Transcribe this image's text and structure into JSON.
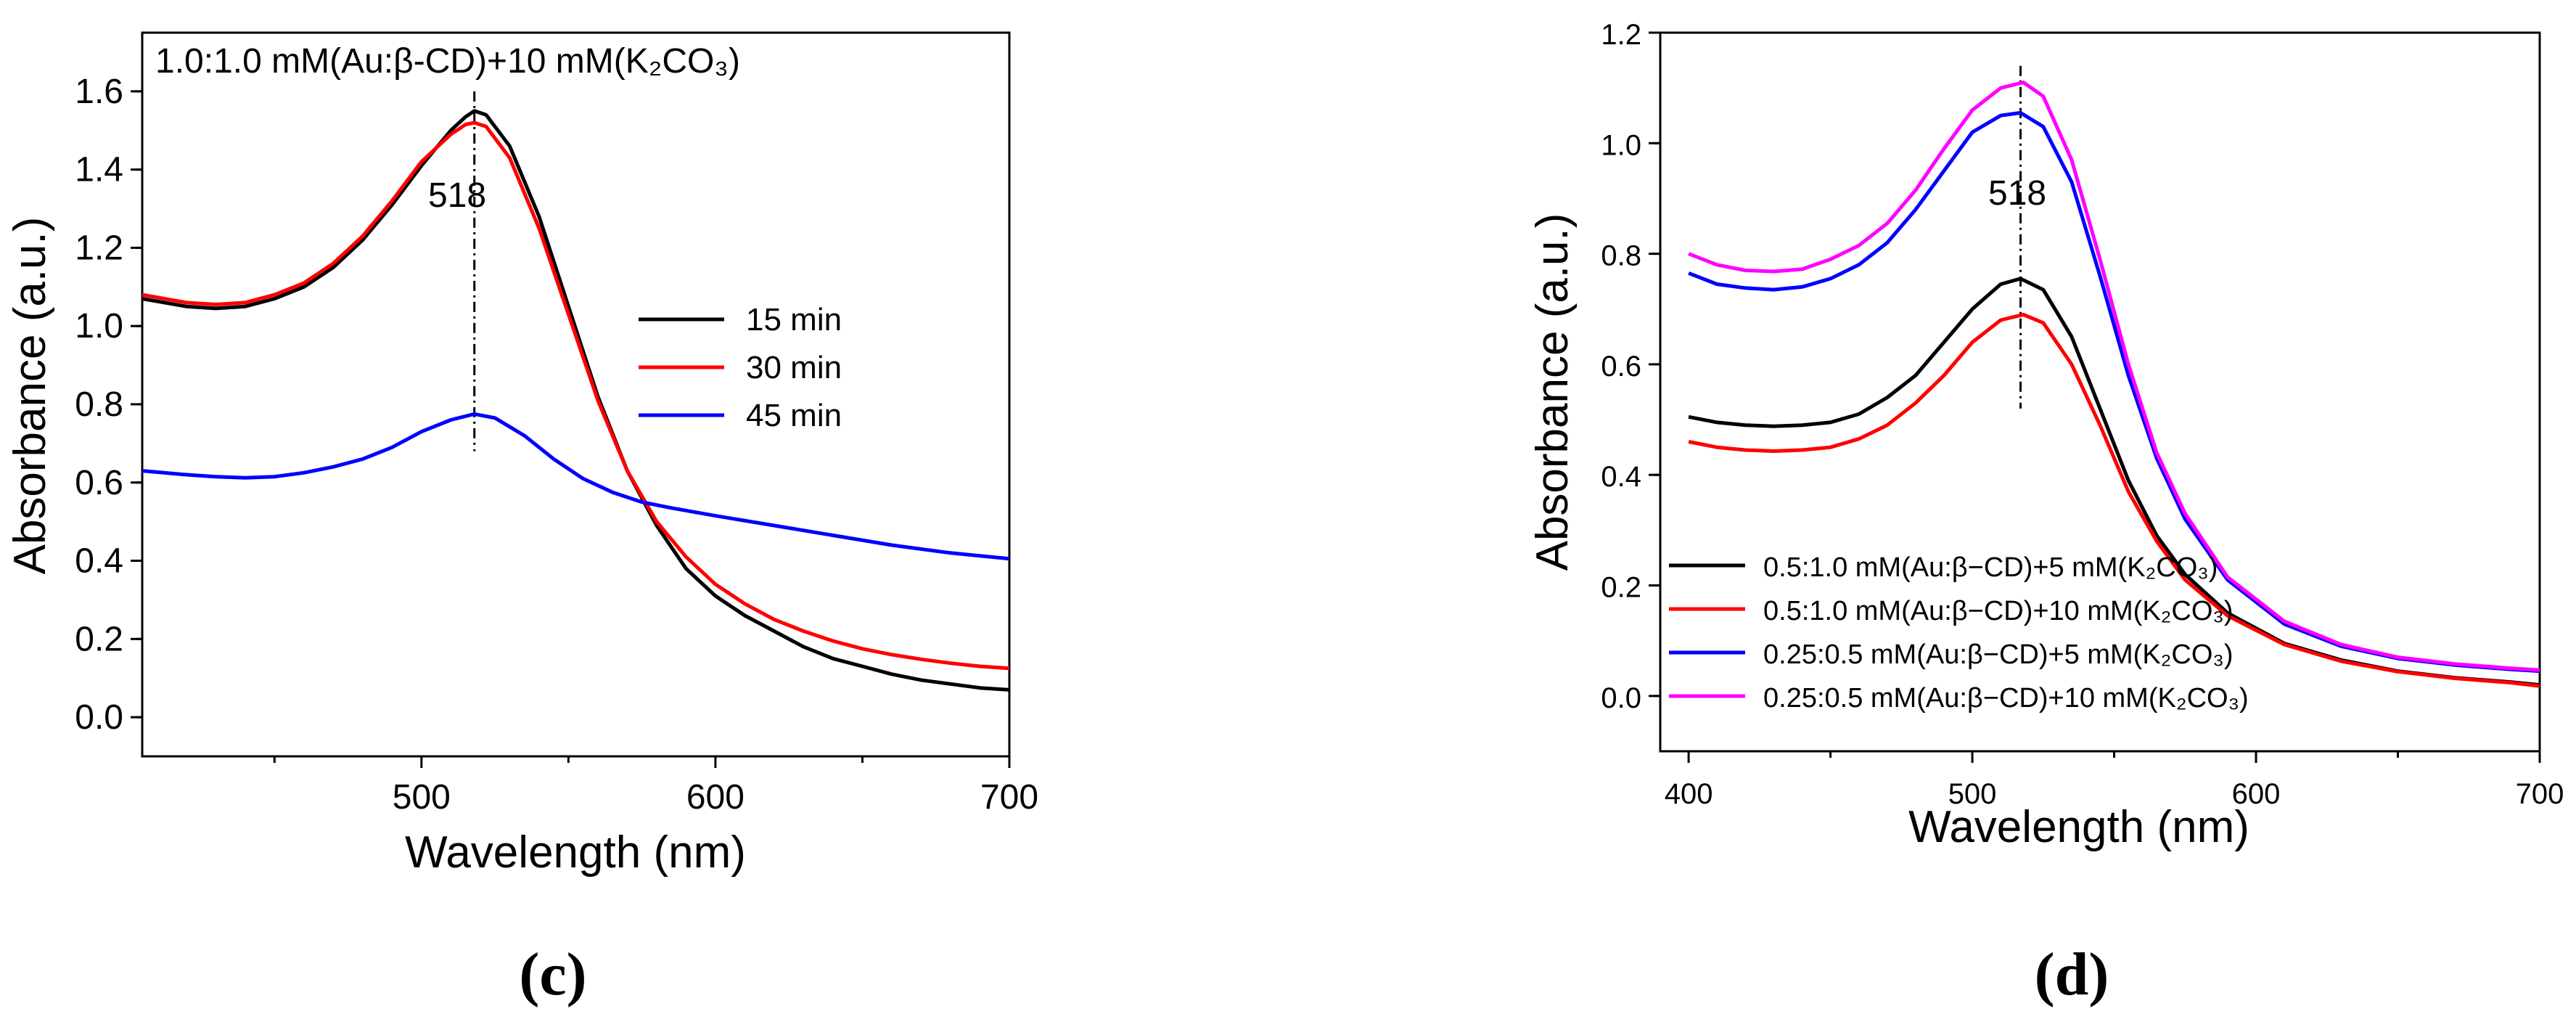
{
  "chart_data": [
    {
      "type": "line",
      "panel_label": "(c)",
      "title": "1.0:1.0 mM(Au:β-CD)+10 mM(K₂CO₃)",
      "xlabel": "Wavelength (nm)",
      "ylabel": "Absorbance (a.u.)",
      "xlim": [
        405,
        700
      ],
      "ylim": [
        -0.1,
        1.75
      ],
      "xticks": [
        500,
        600,
        700
      ],
      "yticks": [
        0.0,
        0.2,
        0.4,
        0.6,
        0.8,
        1.0,
        1.2,
        1.4,
        1.6
      ],
      "xtick_labels": [
        "500",
        "600",
        "700"
      ],
      "ytick_labels": [
        "0.0",
        "0.2",
        "0.4",
        "0.6",
        "0.8",
        "1.0",
        "1.2",
        "1.4",
        "1.6"
      ],
      "peak_marker": {
        "x": 518,
        "label": "518",
        "y_from": 0.68,
        "y_to": 1.6
      },
      "legend_position": "center-right",
      "series": [
        {
          "name": "15 min",
          "color": "#000000",
          "x": [
            405,
            420,
            430,
            440,
            450,
            460,
            470,
            480,
            490,
            500,
            510,
            515,
            518,
            522,
            530,
            540,
            550,
            560,
            570,
            580,
            590,
            600,
            610,
            620,
            630,
            640,
            650,
            660,
            670,
            680,
            690,
            700
          ],
          "y": [
            1.07,
            1.05,
            1.045,
            1.05,
            1.07,
            1.1,
            1.15,
            1.22,
            1.31,
            1.41,
            1.5,
            1.535,
            1.55,
            1.54,
            1.46,
            1.28,
            1.05,
            0.82,
            0.63,
            0.49,
            0.38,
            0.31,
            0.26,
            0.22,
            0.18,
            0.15,
            0.13,
            0.11,
            0.095,
            0.085,
            0.075,
            0.07
          ]
        },
        {
          "name": "30 min",
          "color": "#ff0000",
          "x": [
            405,
            420,
            430,
            440,
            450,
            460,
            470,
            480,
            490,
            500,
            510,
            515,
            518,
            522,
            530,
            540,
            550,
            560,
            570,
            580,
            590,
            600,
            610,
            620,
            630,
            640,
            650,
            660,
            670,
            680,
            690,
            700
          ],
          "y": [
            1.08,
            1.06,
            1.055,
            1.06,
            1.08,
            1.11,
            1.16,
            1.23,
            1.32,
            1.42,
            1.49,
            1.515,
            1.52,
            1.51,
            1.43,
            1.25,
            1.03,
            0.81,
            0.63,
            0.5,
            0.41,
            0.34,
            0.29,
            0.25,
            0.22,
            0.195,
            0.175,
            0.16,
            0.148,
            0.138,
            0.13,
            0.125
          ]
        },
        {
          "name": "45 min",
          "color": "#0000ff",
          "x": [
            405,
            420,
            430,
            440,
            450,
            460,
            470,
            480,
            490,
            500,
            510,
            518,
            525,
            535,
            545,
            555,
            565,
            575,
            585,
            600,
            620,
            640,
            660,
            680,
            700
          ],
          "y": [
            0.63,
            0.62,
            0.615,
            0.612,
            0.615,
            0.625,
            0.64,
            0.66,
            0.69,
            0.73,
            0.76,
            0.775,
            0.765,
            0.72,
            0.66,
            0.61,
            0.575,
            0.55,
            0.535,
            0.515,
            0.49,
            0.465,
            0.44,
            0.42,
            0.405
          ]
        }
      ]
    },
    {
      "type": "line",
      "panel_label": "(d)",
      "title": "",
      "xlabel": "Wavelength (nm)",
      "ylabel": "Absorbance (a.u.)",
      "xlim": [
        390,
        700
      ],
      "ylim": [
        -0.1,
        1.2
      ],
      "xticks": [
        400,
        500,
        600,
        700
      ],
      "yticks": [
        0.0,
        0.2,
        0.4,
        0.6,
        0.8,
        1.0,
        1.2
      ],
      "xtick_labels": [
        "400",
        "500",
        "600",
        "700"
      ],
      "ytick_labels": [
        "0.0",
        "0.2",
        "0.4",
        "0.6",
        "0.8",
        "1.0",
        "1.2"
      ],
      "peak_marker": {
        "x": 517,
        "label": "518",
        "y_from": 0.52,
        "y_to": 1.14
      },
      "legend_position": "bottom-left",
      "series": [
        {
          "name": "0.5:1.0 mM(Au:β−CD)+5 mM(K₂CO₃)",
          "color": "#000000",
          "x": [
            400,
            410,
            420,
            430,
            440,
            450,
            460,
            470,
            480,
            490,
            500,
            510,
            517,
            525,
            535,
            545,
            555,
            565,
            575,
            590,
            610,
            630,
            650,
            670,
            690,
            700
          ],
          "y": [
            0.505,
            0.495,
            0.49,
            0.488,
            0.49,
            0.495,
            0.51,
            0.54,
            0.58,
            0.64,
            0.7,
            0.745,
            0.755,
            0.735,
            0.65,
            0.52,
            0.39,
            0.29,
            0.22,
            0.15,
            0.095,
            0.065,
            0.045,
            0.033,
            0.025,
            0.02
          ]
        },
        {
          "name": "0.5:1.0 mM(Au:β−CD)+10 mM(K₂CO₃)",
          "color": "#ff0000",
          "x": [
            400,
            410,
            420,
            430,
            440,
            450,
            460,
            470,
            480,
            490,
            500,
            510,
            518,
            525,
            535,
            545,
            555,
            565,
            575,
            590,
            610,
            630,
            650,
            670,
            690,
            700
          ],
          "y": [
            0.46,
            0.45,
            0.445,
            0.443,
            0.445,
            0.45,
            0.465,
            0.49,
            0.53,
            0.58,
            0.64,
            0.68,
            0.69,
            0.675,
            0.6,
            0.49,
            0.37,
            0.28,
            0.21,
            0.145,
            0.093,
            0.063,
            0.044,
            0.032,
            0.024,
            0.018
          ]
        },
        {
          "name": "0.25:0.5 mM(Au:β−CD)+5 mM(K₂CO₃)",
          "color": "#0000ff",
          "x": [
            400,
            410,
            420,
            430,
            440,
            450,
            460,
            470,
            480,
            490,
            500,
            510,
            517,
            525,
            535,
            545,
            555,
            565,
            575,
            590,
            610,
            630,
            650,
            670,
            690,
            700
          ],
          "y": [
            0.765,
            0.745,
            0.738,
            0.735,
            0.74,
            0.755,
            0.78,
            0.82,
            0.88,
            0.95,
            1.02,
            1.05,
            1.055,
            1.03,
            0.93,
            0.76,
            0.58,
            0.43,
            0.32,
            0.21,
            0.13,
            0.09,
            0.068,
            0.056,
            0.048,
            0.045
          ]
        },
        {
          "name": "0.25:0.5 mM(Au:β−CD)+10 mM(K₂CO₃)",
          "color": "#ff00ff",
          "x": [
            400,
            410,
            420,
            430,
            440,
            450,
            460,
            470,
            480,
            490,
            500,
            510,
            518,
            525,
            535,
            545,
            555,
            565,
            575,
            590,
            610,
            630,
            650,
            670,
            690,
            700
          ],
          "y": [
            0.8,
            0.78,
            0.77,
            0.768,
            0.772,
            0.79,
            0.815,
            0.855,
            0.915,
            0.99,
            1.06,
            1.1,
            1.11,
            1.085,
            0.97,
            0.79,
            0.6,
            0.44,
            0.33,
            0.215,
            0.135,
            0.093,
            0.07,
            0.058,
            0.05,
            0.047
          ]
        }
      ]
    }
  ]
}
